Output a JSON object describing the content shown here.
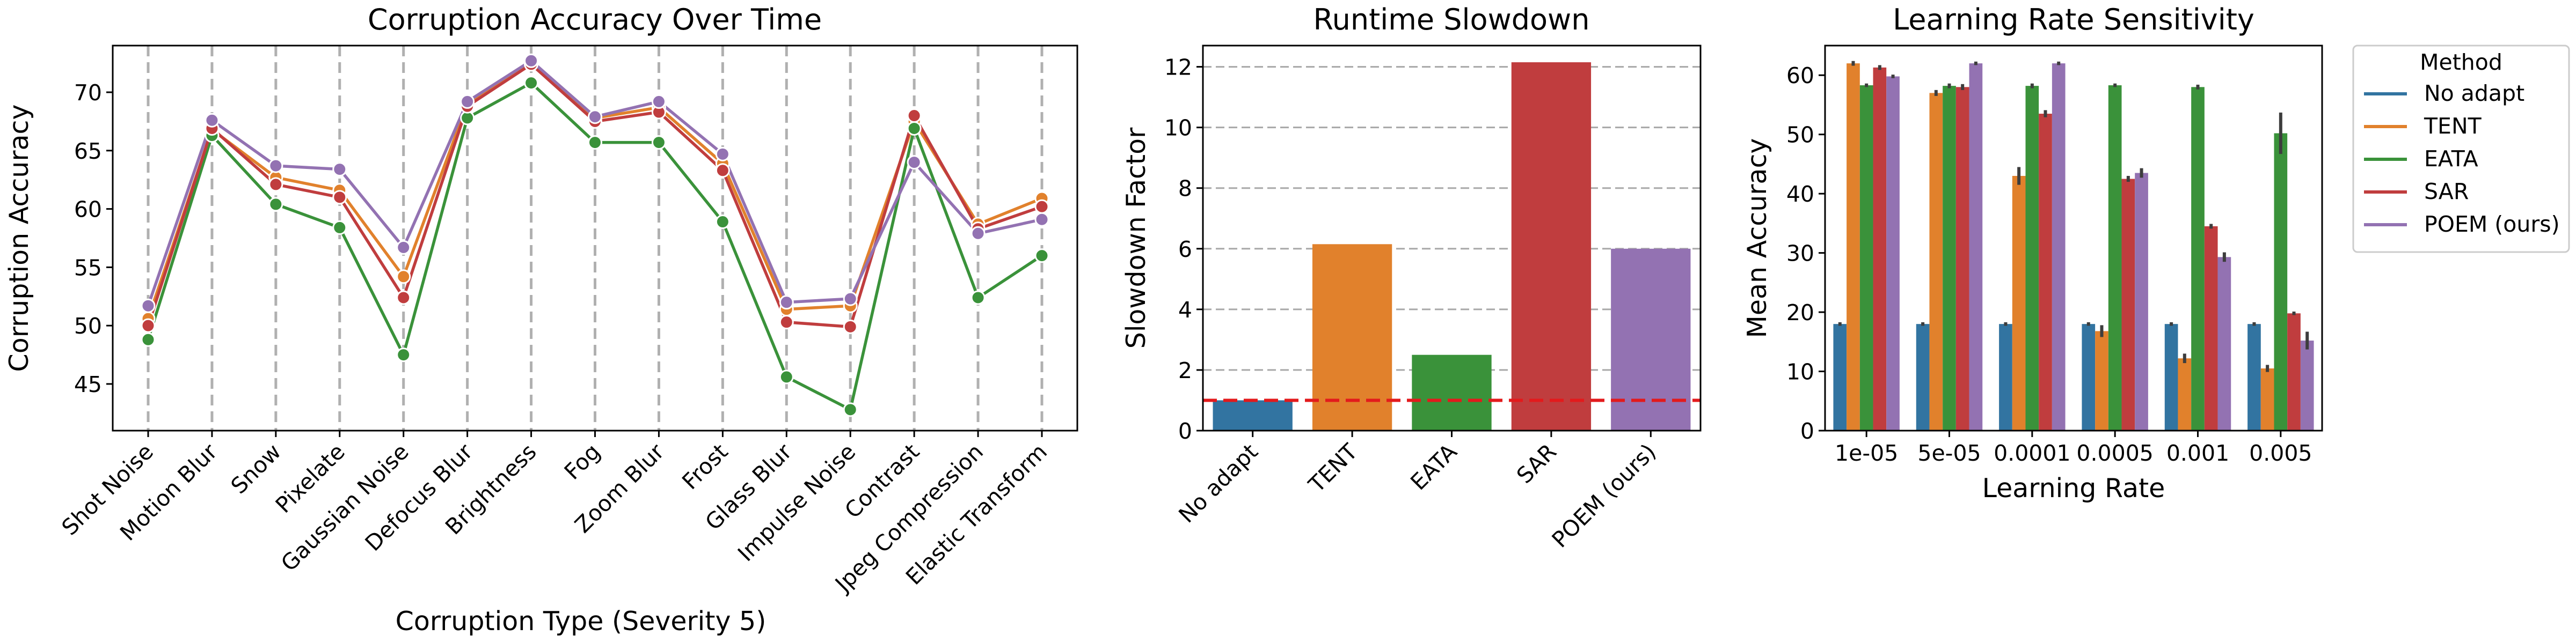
{
  "chart_data": [
    {
      "type": "line",
      "title": "Corruption Accuracy Over Time",
      "xlabel": "Corruption Type (Severity 5)",
      "ylabel": "Corruption Accuracy",
      "ylim": [
        41,
        74
      ],
      "yticks": [
        45,
        50,
        55,
        60,
        65,
        70
      ],
      "grid": "vertical dashed",
      "categories": [
        "Shot Noise",
        "Motion Blur",
        "Snow",
        "Pixelate",
        "Gaussian Noise",
        "Defocus Blur",
        "Brightness",
        "Fog",
        "Zoom Blur",
        "Frost",
        "Glass Blur",
        "Impulse Noise",
        "Contrast",
        "Jpeg Compression",
        "Elastic Transform"
      ],
      "series": [
        {
          "name": "TENT",
          "color": "#e1812c",
          "values": [
            50.6,
            66.8,
            62.7,
            61.6,
            54.2,
            69.0,
            72.5,
            67.8,
            68.7,
            63.9,
            51.4,
            51.7,
            67.5,
            58.7,
            60.9
          ]
        },
        {
          "name": "EATA",
          "color": "#3a923a",
          "values": [
            48.8,
            66.3,
            60.4,
            58.4,
            47.5,
            67.8,
            70.8,
            65.7,
            65.7,
            58.9,
            45.6,
            42.8,
            66.9,
            52.4,
            56.0
          ]
        },
        {
          "name": "SAR",
          "color": "#c03d3e",
          "values": [
            50.0,
            66.9,
            62.1,
            61.0,
            52.4,
            68.8,
            72.4,
            67.5,
            68.3,
            63.3,
            50.3,
            49.9,
            68.0,
            58.3,
            60.2
          ]
        },
        {
          "name": "POEM (ours)",
          "color": "#9372b2",
          "values": [
            51.7,
            67.6,
            63.7,
            63.4,
            56.7,
            69.2,
            72.7,
            67.9,
            69.2,
            64.7,
            52.0,
            52.3,
            64.0,
            57.9,
            59.1
          ]
        }
      ]
    },
    {
      "type": "bar",
      "title": "Runtime Slowdown",
      "xlabel": "",
      "ylabel": "Slowdown Factor",
      "ylim": [
        0,
        12.7
      ],
      "yticks": [
        0,
        2,
        4,
        6,
        8,
        10,
        12
      ],
      "grid": "horizontal dashed",
      "reference_line": {
        "value": 1.0,
        "color": "#e31a1c"
      },
      "categories": [
        "No adapt",
        "TENT",
        "EATA",
        "SAR",
        "POEM (ours)"
      ],
      "values": [
        1.0,
        6.15,
        2.5,
        12.15,
        6.0
      ],
      "colors": [
        "#3274a1",
        "#e1812c",
        "#3a923a",
        "#c03d3e",
        "#9372b2"
      ]
    },
    {
      "type": "bar",
      "title": "Learning Rate Sensitivity",
      "xlabel": "Learning Rate",
      "ylabel": "Mean Accuracy",
      "ylim": [
        0,
        65
      ],
      "yticks": [
        0,
        10,
        20,
        30,
        40,
        50,
        60
      ],
      "categories": [
        "1e-05",
        "5e-05",
        "0.0001",
        "0.0005",
        "0.001",
        "0.005"
      ],
      "legend": {
        "title": "Method",
        "placement": "outside right"
      },
      "series": [
        {
          "name": "No adapt",
          "color": "#3274a1",
          "values": [
            18.0,
            18.0,
            18.0,
            18.0,
            18.0,
            18.0
          ],
          "err": [
            0.3,
            0.3,
            0.3,
            0.3,
            0.3,
            0.3
          ]
        },
        {
          "name": "TENT",
          "color": "#e1812c",
          "values": [
            62.0,
            57.0,
            43.0,
            16.8,
            12.2,
            10.5
          ],
          "err": [
            0.4,
            0.5,
            1.5,
            1.0,
            0.8,
            0.6
          ]
        },
        {
          "name": "EATA",
          "color": "#3a923a",
          "values": [
            58.3,
            58.2,
            58.2,
            58.3,
            58.0,
            50.2
          ],
          "err": [
            0.3,
            0.4,
            0.4,
            0.3,
            0.4,
            3.5
          ]
        },
        {
          "name": "SAR",
          "color": "#c03d3e",
          "values": [
            61.3,
            58.0,
            53.5,
            42.5,
            34.5,
            19.8
          ],
          "err": [
            0.4,
            0.5,
            0.6,
            0.5,
            0.4,
            0.3
          ]
        },
        {
          "name": "POEM (ours)",
          "color": "#9372b2",
          "values": [
            59.8,
            62.0,
            62.0,
            43.5,
            29.3,
            15.2
          ],
          "err": [
            0.3,
            0.3,
            0.3,
            0.8,
            0.8,
            1.5
          ]
        }
      ]
    }
  ]
}
